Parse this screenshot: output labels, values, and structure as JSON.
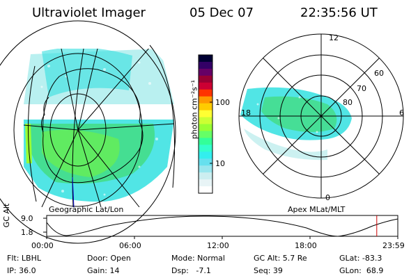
{
  "header": {
    "instrument": "Ultraviolet Imager",
    "date": "05 Dec 07",
    "time": "22:35:56 UT"
  },
  "colorbar": {
    "unit_label": "photon cm⁻²s⁻¹",
    "tick_labels": [
      "100",
      "10"
    ],
    "colors": [
      "#000033",
      "#330066",
      "#660066",
      "#990033",
      "#cc0033",
      "#ff3300",
      "#ff9900",
      "#ffcc00",
      "#ffff33",
      "#ccff33",
      "#99ff33",
      "#66ff66",
      "#33ff99",
      "#33ffcc",
      "#33eeee",
      "#66e0ee",
      "#99e6ee",
      "#cceef0",
      "#e8f4f6",
      "#ffffff"
    ]
  },
  "left_panel": {
    "caption": "Geographic Lat/Lon"
  },
  "right_panel": {
    "caption": "Apex MLat/MLT",
    "mlt_labels": [
      "12",
      "18",
      "6",
      "0"
    ],
    "mlat_labels": [
      "60",
      "70",
      "80"
    ]
  },
  "altitude_plot": {
    "ylabel": "GC Alt",
    "y_ticks": [
      "9.0",
      "1.8"
    ],
    "x_ticks": [
      "00:00",
      "06:00",
      "12:00",
      "18:00",
      "23:59"
    ],
    "cursor_fraction": 0.94
  },
  "status": {
    "filter": "Flt: LBHL",
    "ip": "IP: 36.0",
    "door": "Door: Open",
    "gain": "Gain: 14",
    "mode": "Mode: Normal",
    "dsp": "Dsp:   -7.1",
    "gc_alt": "GC Alt: 5.7 Re",
    "seq": "Seq: 39",
    "glat": "GLat: -83.3",
    "glon": "GLon:  68.9"
  }
}
